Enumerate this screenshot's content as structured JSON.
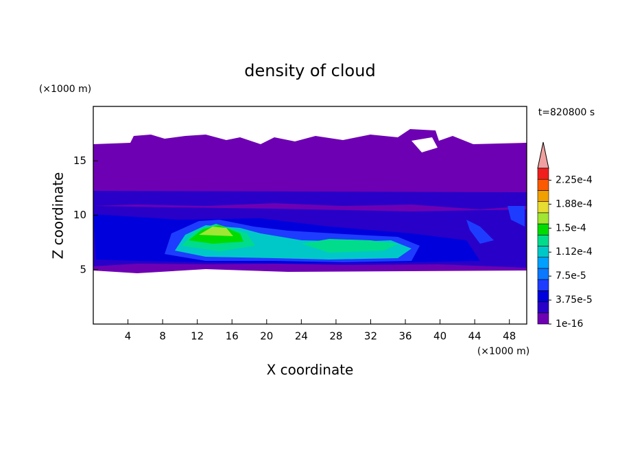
{
  "chart_data": {
    "type": "contour",
    "title": "density of cloud",
    "x_label": "X coordinate",
    "y_label": "Z coordinate",
    "x_unit": "(×1000 m)",
    "y_unit": "(×1000 m)",
    "annotation": "t=820800 s",
    "xlim": [
      0,
      50
    ],
    "xticks": [
      4,
      8,
      12,
      16,
      20,
      24,
      28,
      32,
      36,
      40,
      44,
      48
    ],
    "ylim": [
      0,
      20
    ],
    "yticks": [
      5,
      10,
      15
    ],
    "colorbar": {
      "lim": [
        1e-16,
        0.00024375
      ],
      "colors": [
        "#6e00b4",
        "#2800c8",
        "#0000dc",
        "#1e3cff",
        "#0a78ff",
        "#00a0ff",
        "#00c8c8",
        "#00dc8c",
        "#00dc00",
        "#a0e632",
        "#e6dc32",
        "#f0a000",
        "#fa5a00",
        "#f01e1e"
      ],
      "over_color": "#f0a0a0",
      "ticks": [
        {
          "value": 1e-16,
          "label": "1e-16"
        },
        {
          "value": 3.75e-05,
          "label": "3.75e-5"
        },
        {
          "value": 7.5e-05,
          "label": "7.5e-5"
        },
        {
          "value": 0.0001125,
          "label": "1.12e-4"
        },
        {
          "value": 0.00015,
          "label": "1.5e-4"
        },
        {
          "value": 0.0001875,
          "label": "1.88e-4"
        },
        {
          "value": 0.000225,
          "label": "2.25e-4"
        }
      ]
    }
  }
}
